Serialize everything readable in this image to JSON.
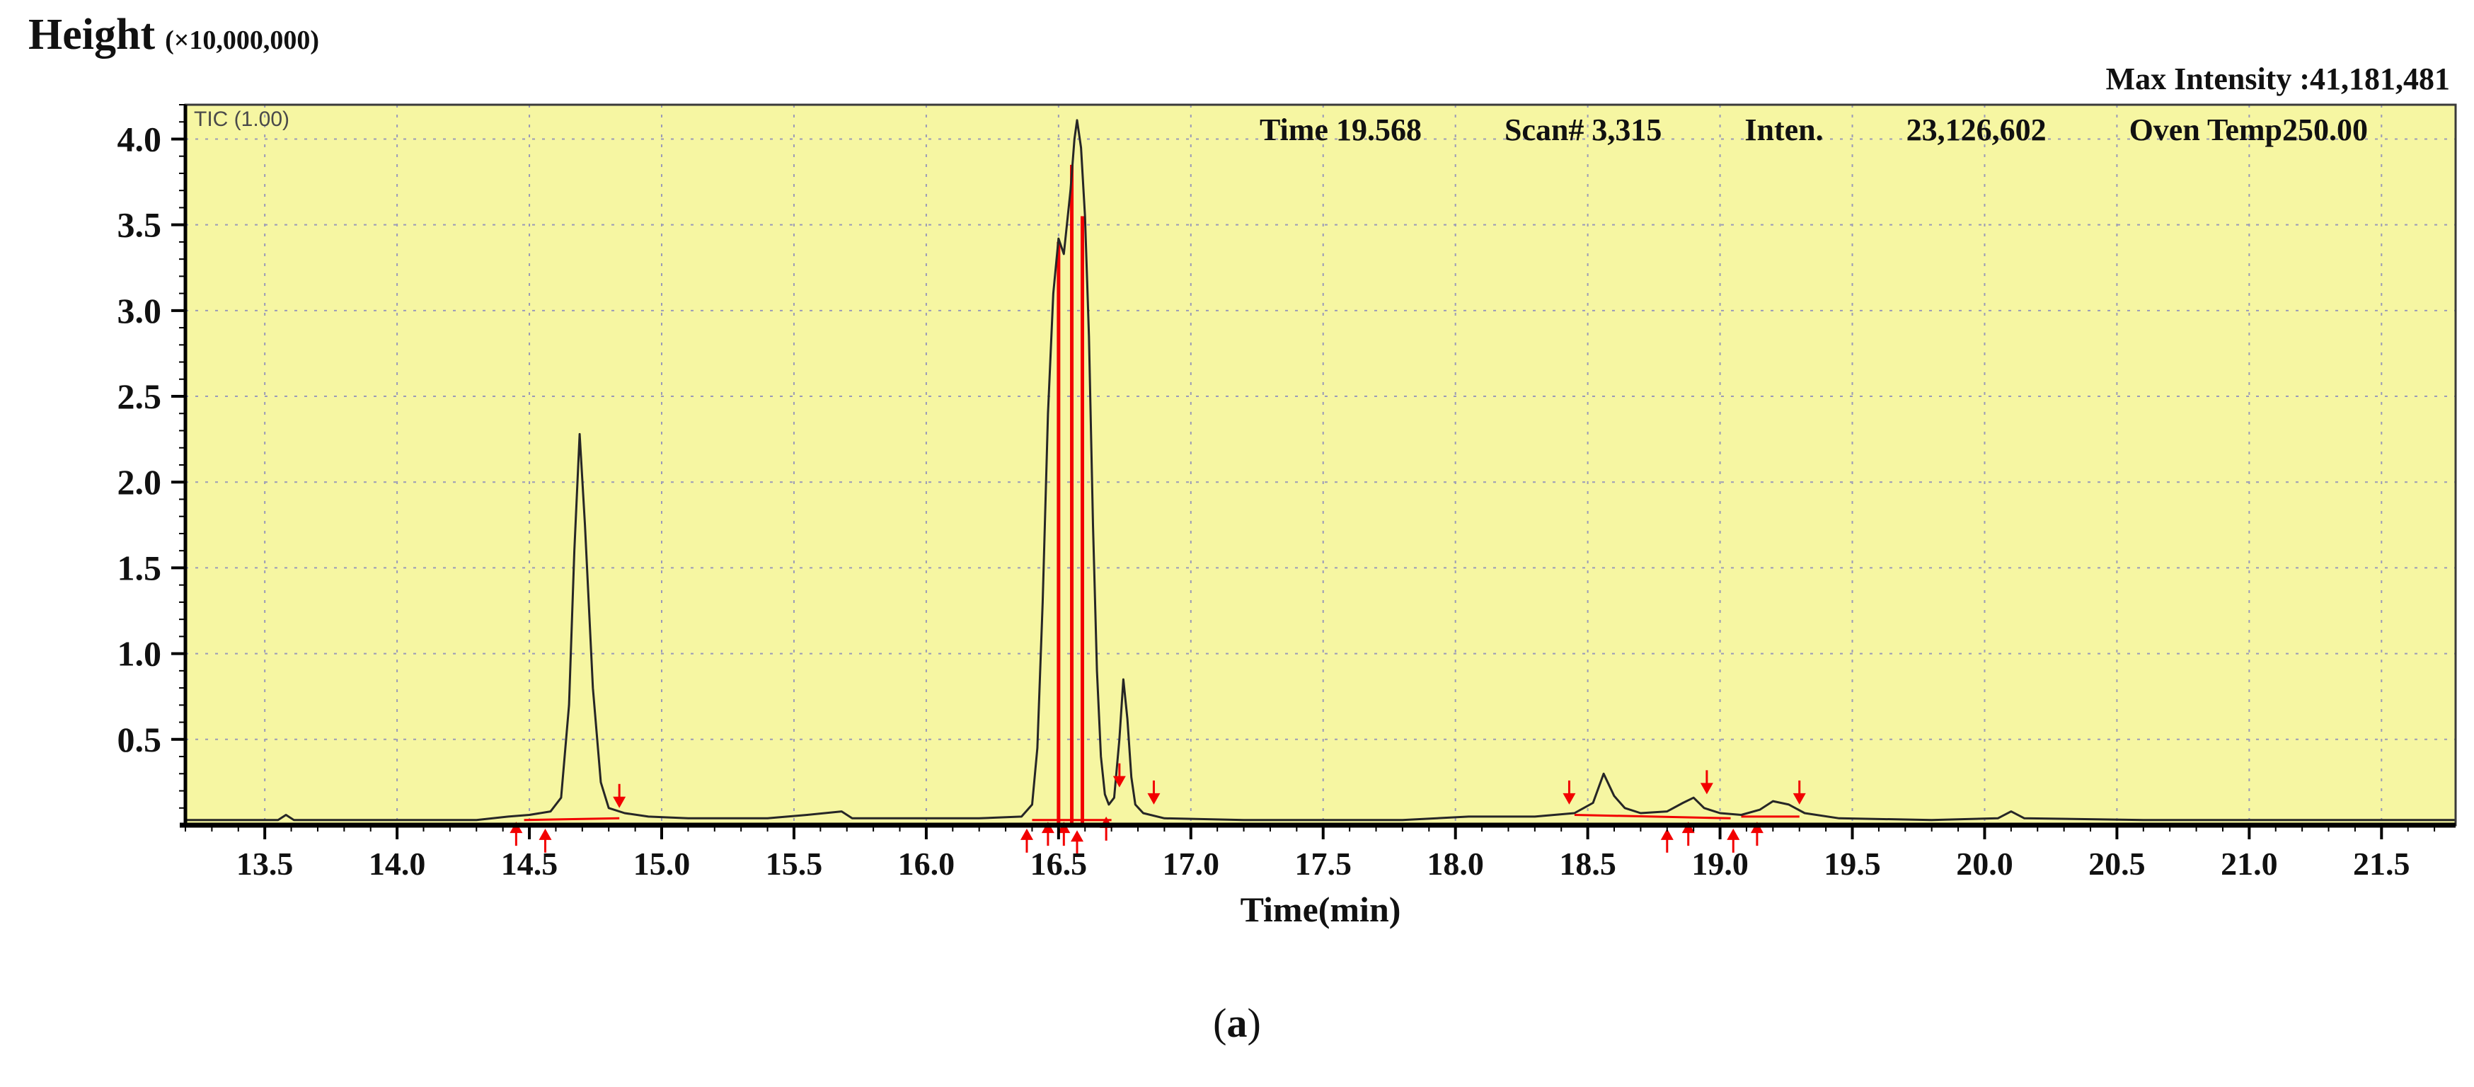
{
  "header": {
    "y_axis_title": "Height",
    "y_axis_scale": "(×10,000,000)",
    "max_intensity": "Max Intensity :41,181,481"
  },
  "plot": {
    "tic_label": "TIC (1.00)",
    "status": {
      "time": "Time 19.568",
      "scan": "Scan# 3,315",
      "inten_label": "Inten.",
      "inten_value": "23,126,602",
      "oven": "Oven Temp250.00"
    }
  },
  "caption": {
    "open": "(",
    "letter": "a",
    "close": ")"
  },
  "chart_data": {
    "type": "line",
    "title": "TIC chromatogram",
    "xlabel": "Time(min)",
    "ylabel": "Height (×10,000,000)",
    "xlim": [
      13.2,
      21.78
    ],
    "ylim": [
      0,
      4.2
    ],
    "xticks": [
      "13.5",
      "14.0",
      "14.5",
      "15.0",
      "15.5",
      "16.0",
      "16.5",
      "17.0",
      "17.5",
      "18.0",
      "18.5",
      "19.0",
      "19.5",
      "20.0",
      "20.5",
      "21.0",
      "21.5"
    ],
    "yticks": [
      "0.5",
      "1.0",
      "1.5",
      "2.0",
      "2.5",
      "3.0",
      "3.5",
      "4.0"
    ],
    "grid": true,
    "legend": "none",
    "plot_bg": "#f6f6a2",
    "grid_color": "#9a9ab8",
    "trace_color": "#262626",
    "marker_color": "#f20000",
    "series": [
      {
        "name": "TIC",
        "points": [
          [
            13.2,
            0.03
          ],
          [
            13.55,
            0.03
          ],
          [
            13.58,
            0.06
          ],
          [
            13.61,
            0.03
          ],
          [
            14.3,
            0.03
          ],
          [
            14.42,
            0.05
          ],
          [
            14.5,
            0.06
          ],
          [
            14.58,
            0.08
          ],
          [
            14.62,
            0.16
          ],
          [
            14.65,
            0.7
          ],
          [
            14.67,
            1.6
          ],
          [
            14.69,
            2.28
          ],
          [
            14.71,
            1.75
          ],
          [
            14.74,
            0.8
          ],
          [
            14.77,
            0.25
          ],
          [
            14.8,
            0.1
          ],
          [
            14.86,
            0.07
          ],
          [
            14.95,
            0.05
          ],
          [
            15.1,
            0.04
          ],
          [
            15.4,
            0.04
          ],
          [
            15.55,
            0.06
          ],
          [
            15.68,
            0.08
          ],
          [
            15.72,
            0.04
          ],
          [
            16.0,
            0.04
          ],
          [
            16.2,
            0.04
          ],
          [
            16.36,
            0.05
          ],
          [
            16.4,
            0.12
          ],
          [
            16.42,
            0.45
          ],
          [
            16.44,
            1.3
          ],
          [
            16.46,
            2.4
          ],
          [
            16.48,
            3.1
          ],
          [
            16.5,
            3.42
          ],
          [
            16.52,
            3.33
          ],
          [
            16.545,
            3.7
          ],
          [
            16.56,
            4.0
          ],
          [
            16.57,
            4.11
          ],
          [
            16.585,
            3.95
          ],
          [
            16.6,
            3.55
          ],
          [
            16.615,
            2.85
          ],
          [
            16.63,
            1.75
          ],
          [
            16.645,
            0.9
          ],
          [
            16.66,
            0.4
          ],
          [
            16.675,
            0.18
          ],
          [
            16.69,
            0.12
          ],
          [
            16.71,
            0.16
          ],
          [
            16.73,
            0.5
          ],
          [
            16.745,
            0.85
          ],
          [
            16.76,
            0.62
          ],
          [
            16.775,
            0.28
          ],
          [
            16.79,
            0.12
          ],
          [
            16.82,
            0.07
          ],
          [
            16.9,
            0.04
          ],
          [
            17.2,
            0.03
          ],
          [
            17.8,
            0.03
          ],
          [
            18.05,
            0.05
          ],
          [
            18.3,
            0.05
          ],
          [
            18.45,
            0.07
          ],
          [
            18.52,
            0.13
          ],
          [
            18.56,
            0.3
          ],
          [
            18.6,
            0.17
          ],
          [
            18.64,
            0.1
          ],
          [
            18.7,
            0.07
          ],
          [
            18.8,
            0.08
          ],
          [
            18.86,
            0.13
          ],
          [
            18.9,
            0.16
          ],
          [
            18.94,
            0.1
          ],
          [
            19.0,
            0.07
          ],
          [
            19.08,
            0.06
          ],
          [
            19.15,
            0.09
          ],
          [
            19.2,
            0.14
          ],
          [
            19.26,
            0.12
          ],
          [
            19.32,
            0.07
          ],
          [
            19.45,
            0.04
          ],
          [
            19.8,
            0.03
          ],
          [
            20.05,
            0.04
          ],
          [
            20.1,
            0.08
          ],
          [
            20.15,
            0.04
          ],
          [
            20.6,
            0.03
          ],
          [
            21.1,
            0.03
          ],
          [
            21.78,
            0.03
          ]
        ]
      }
    ],
    "red_vlines": [
      [
        16.5,
        3.4
      ],
      [
        16.55,
        3.85
      ],
      [
        16.59,
        3.55
      ]
    ],
    "red_segments": [
      [
        14.48,
        0.03,
        14.84,
        0.04
      ],
      [
        16.4,
        0.03,
        16.7,
        0.03
      ],
      [
        18.45,
        0.06,
        19.04,
        0.04
      ],
      [
        19.08,
        0.05,
        19.3,
        0.05
      ]
    ],
    "peak_markers": [
      {
        "x": 14.45,
        "y": 0.02,
        "dir": "up"
      },
      {
        "x": 14.56,
        "y": -0.02,
        "dir": "up"
      },
      {
        "x": 14.84,
        "y": 0.1,
        "dir": "down"
      },
      {
        "x": 16.38,
        "y": -0.02,
        "dir": "up"
      },
      {
        "x": 16.46,
        "y": 0.02,
        "dir": "up"
      },
      {
        "x": 16.52,
        "y": 0.02,
        "dir": "up"
      },
      {
        "x": 16.57,
        "y": -0.03,
        "dir": "up"
      },
      {
        "x": 16.68,
        "y": 0.05,
        "dir": "up"
      },
      {
        "x": 16.73,
        "y": 0.22,
        "dir": "down"
      },
      {
        "x": 16.86,
        "y": 0.12,
        "dir": "down"
      },
      {
        "x": 18.43,
        "y": 0.12,
        "dir": "down"
      },
      {
        "x": 18.8,
        "y": -0.02,
        "dir": "up"
      },
      {
        "x": 18.88,
        "y": 0.02,
        "dir": "up"
      },
      {
        "x": 18.95,
        "y": 0.18,
        "dir": "down"
      },
      {
        "x": 19.05,
        "y": -0.02,
        "dir": "up"
      },
      {
        "x": 19.14,
        "y": 0.02,
        "dir": "up"
      },
      {
        "x": 19.3,
        "y": 0.12,
        "dir": "down"
      }
    ]
  }
}
